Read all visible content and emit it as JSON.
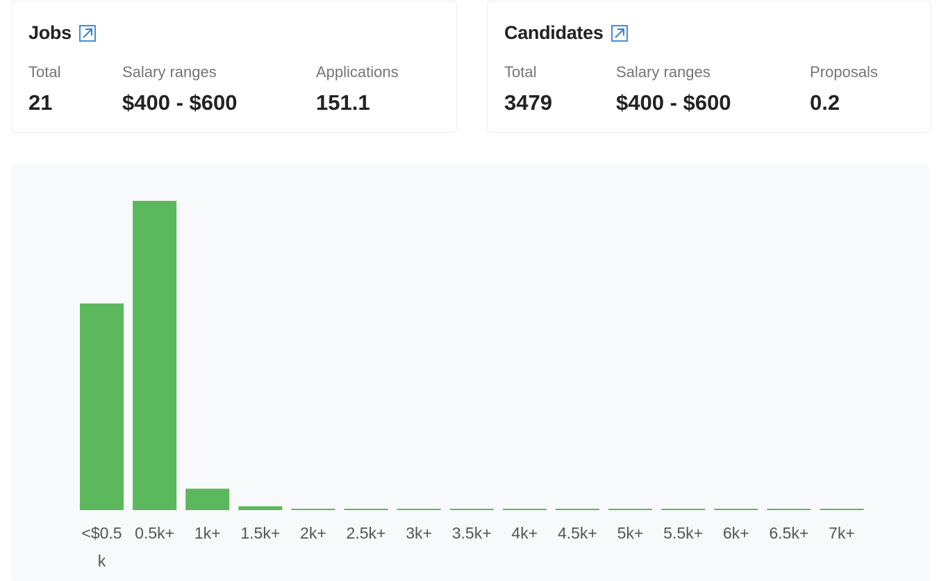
{
  "jobs": {
    "title": "Jobs",
    "link_icon": "external-link-icon",
    "stats": [
      {
        "label": "Total",
        "value": "21"
      },
      {
        "label": "Salary ranges",
        "value": "$400 - $600"
      },
      {
        "label": "Applications",
        "value": "151.1"
      }
    ]
  },
  "candidates": {
    "title": "Candidates",
    "link_icon": "external-link-icon",
    "stats": [
      {
        "label": "Total",
        "value": "3479"
      },
      {
        "label": "Salary ranges",
        "value": "$400 - $600"
      },
      {
        "label": "Proposals",
        "value": "0.2"
      }
    ]
  },
  "colors": {
    "bar": "#5cb85c",
    "accent_link": "#2f7fd1",
    "chart_background": "#f8f9fb"
  },
  "chart_data": {
    "type": "bar",
    "categories": [
      "<$0.5k",
      "0.5k+",
      "1k+",
      "1.5k+",
      "2k+",
      "2.5k+",
      "3k+",
      "3.5k+",
      "4k+",
      "4.5k+",
      "5k+",
      "5.5k+",
      "6k+",
      "6.5k+",
      "7k+"
    ],
    "values": [
      1350,
      2020,
      140,
      25,
      2,
      2,
      2,
      2,
      2,
      2,
      2,
      2,
      2,
      2,
      2
    ],
    "title": "",
    "xlabel": "",
    "ylabel": "",
    "ylim": [
      0,
      2020
    ],
    "grid": false,
    "legend": "none"
  }
}
